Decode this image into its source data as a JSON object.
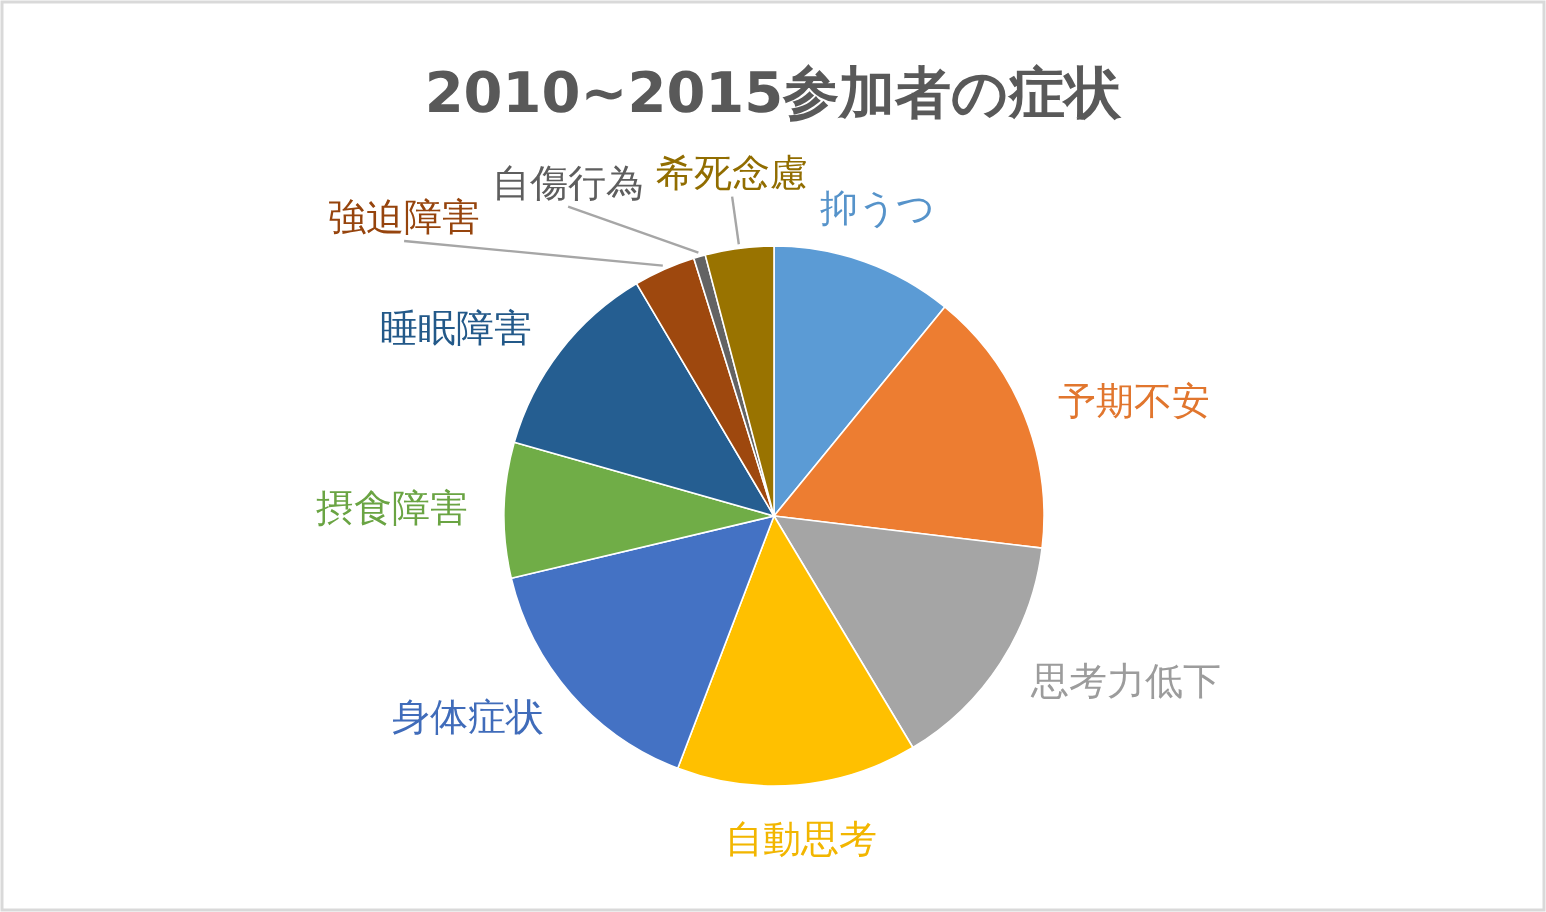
{
  "chart_data": {
    "type": "pie",
    "title": "2010~2015参加者の症状",
    "categories": [
      "抑うつ",
      "予期不安",
      "思考力低下",
      "自動思考",
      "身体症状",
      "摂食障害",
      "睡眠障害",
      "強迫障害",
      "自傷行為",
      "希死念慮"
    ],
    "values": [
      10.9,
      16.0,
      14.5,
      14.4,
      15.5,
      8.1,
      12.1,
      3.7,
      0.7,
      4.1
    ],
    "colors": [
      "#5b9bd5",
      "#ed7d31",
      "#a5a5a5",
      "#ffc000",
      "#4472c4",
      "#70ad47",
      "#255e91",
      "#9e480e",
      "#636363",
      "#997300"
    ]
  }
}
